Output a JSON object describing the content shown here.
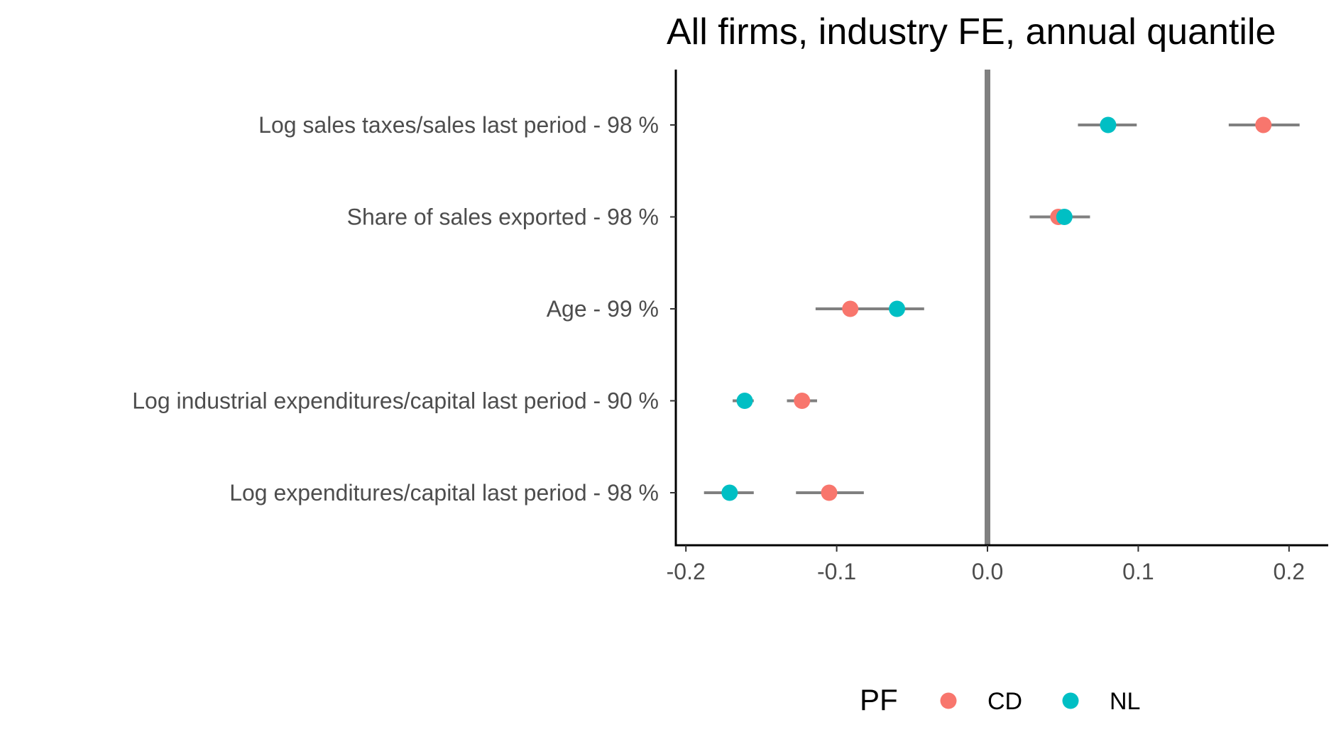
{
  "chart_data": {
    "type": "scatter",
    "title": "All firms, industry FE, annual quantile",
    "xlabel": "",
    "ylabel": "",
    "xlim": [
      -0.21,
      0.225
    ],
    "x_ticks": [
      -0.2,
      -0.1,
      0.0,
      0.1,
      0.2
    ],
    "x_tick_labels": [
      "-0.2",
      "-0.1",
      "0.0",
      "0.1",
      "0.2"
    ],
    "reference_line_x": 0.0,
    "grid": false,
    "legend_title": "PF",
    "legend_position": "bottom",
    "categories": [
      "Log sales taxes/sales last period - 98 %",
      "Share of sales exported - 98 %",
      "Age - 99 %",
      "Log industrial expenditures/capital last period - 90 %",
      "Log expenditures/capital last period - 98 %"
    ],
    "series": [
      {
        "name": "CD",
        "color": "#F8766D",
        "points": [
          {
            "category": "Log sales taxes/sales last period - 98 %",
            "x": 0.183,
            "lo": 0.16,
            "hi": 0.207
          },
          {
            "category": "Share of sales exported - 98 %",
            "x": 0.047,
            "lo": 0.028,
            "hi": 0.066
          },
          {
            "category": "Age - 99 %",
            "x": -0.091,
            "lo": -0.114,
            "hi": -0.069
          },
          {
            "category": "Log industrial expenditures/capital last period - 90 %",
            "x": -0.123,
            "lo": -0.133,
            "hi": -0.113
          },
          {
            "category": "Log expenditures/capital last period - 98 %",
            "x": -0.105,
            "lo": -0.127,
            "hi": -0.082
          }
        ]
      },
      {
        "name": "NL",
        "color": "#00BFC4",
        "points": [
          {
            "category": "Log sales taxes/sales last period - 98 %",
            "x": 0.08,
            "lo": 0.06,
            "hi": 0.099
          },
          {
            "category": "Share of sales exported - 98 %",
            "x": 0.051,
            "lo": 0.033,
            "hi": 0.068
          },
          {
            "category": "Age - 99 %",
            "x": -0.06,
            "lo": -0.079,
            "hi": -0.042
          },
          {
            "category": "Log industrial expenditures/capital last period - 90 %",
            "x": -0.161,
            "lo": -0.169,
            "hi": -0.155
          },
          {
            "category": "Log expenditures/capital last period - 98 %",
            "x": -0.171,
            "lo": -0.188,
            "hi": -0.155
          }
        ]
      }
    ]
  }
}
